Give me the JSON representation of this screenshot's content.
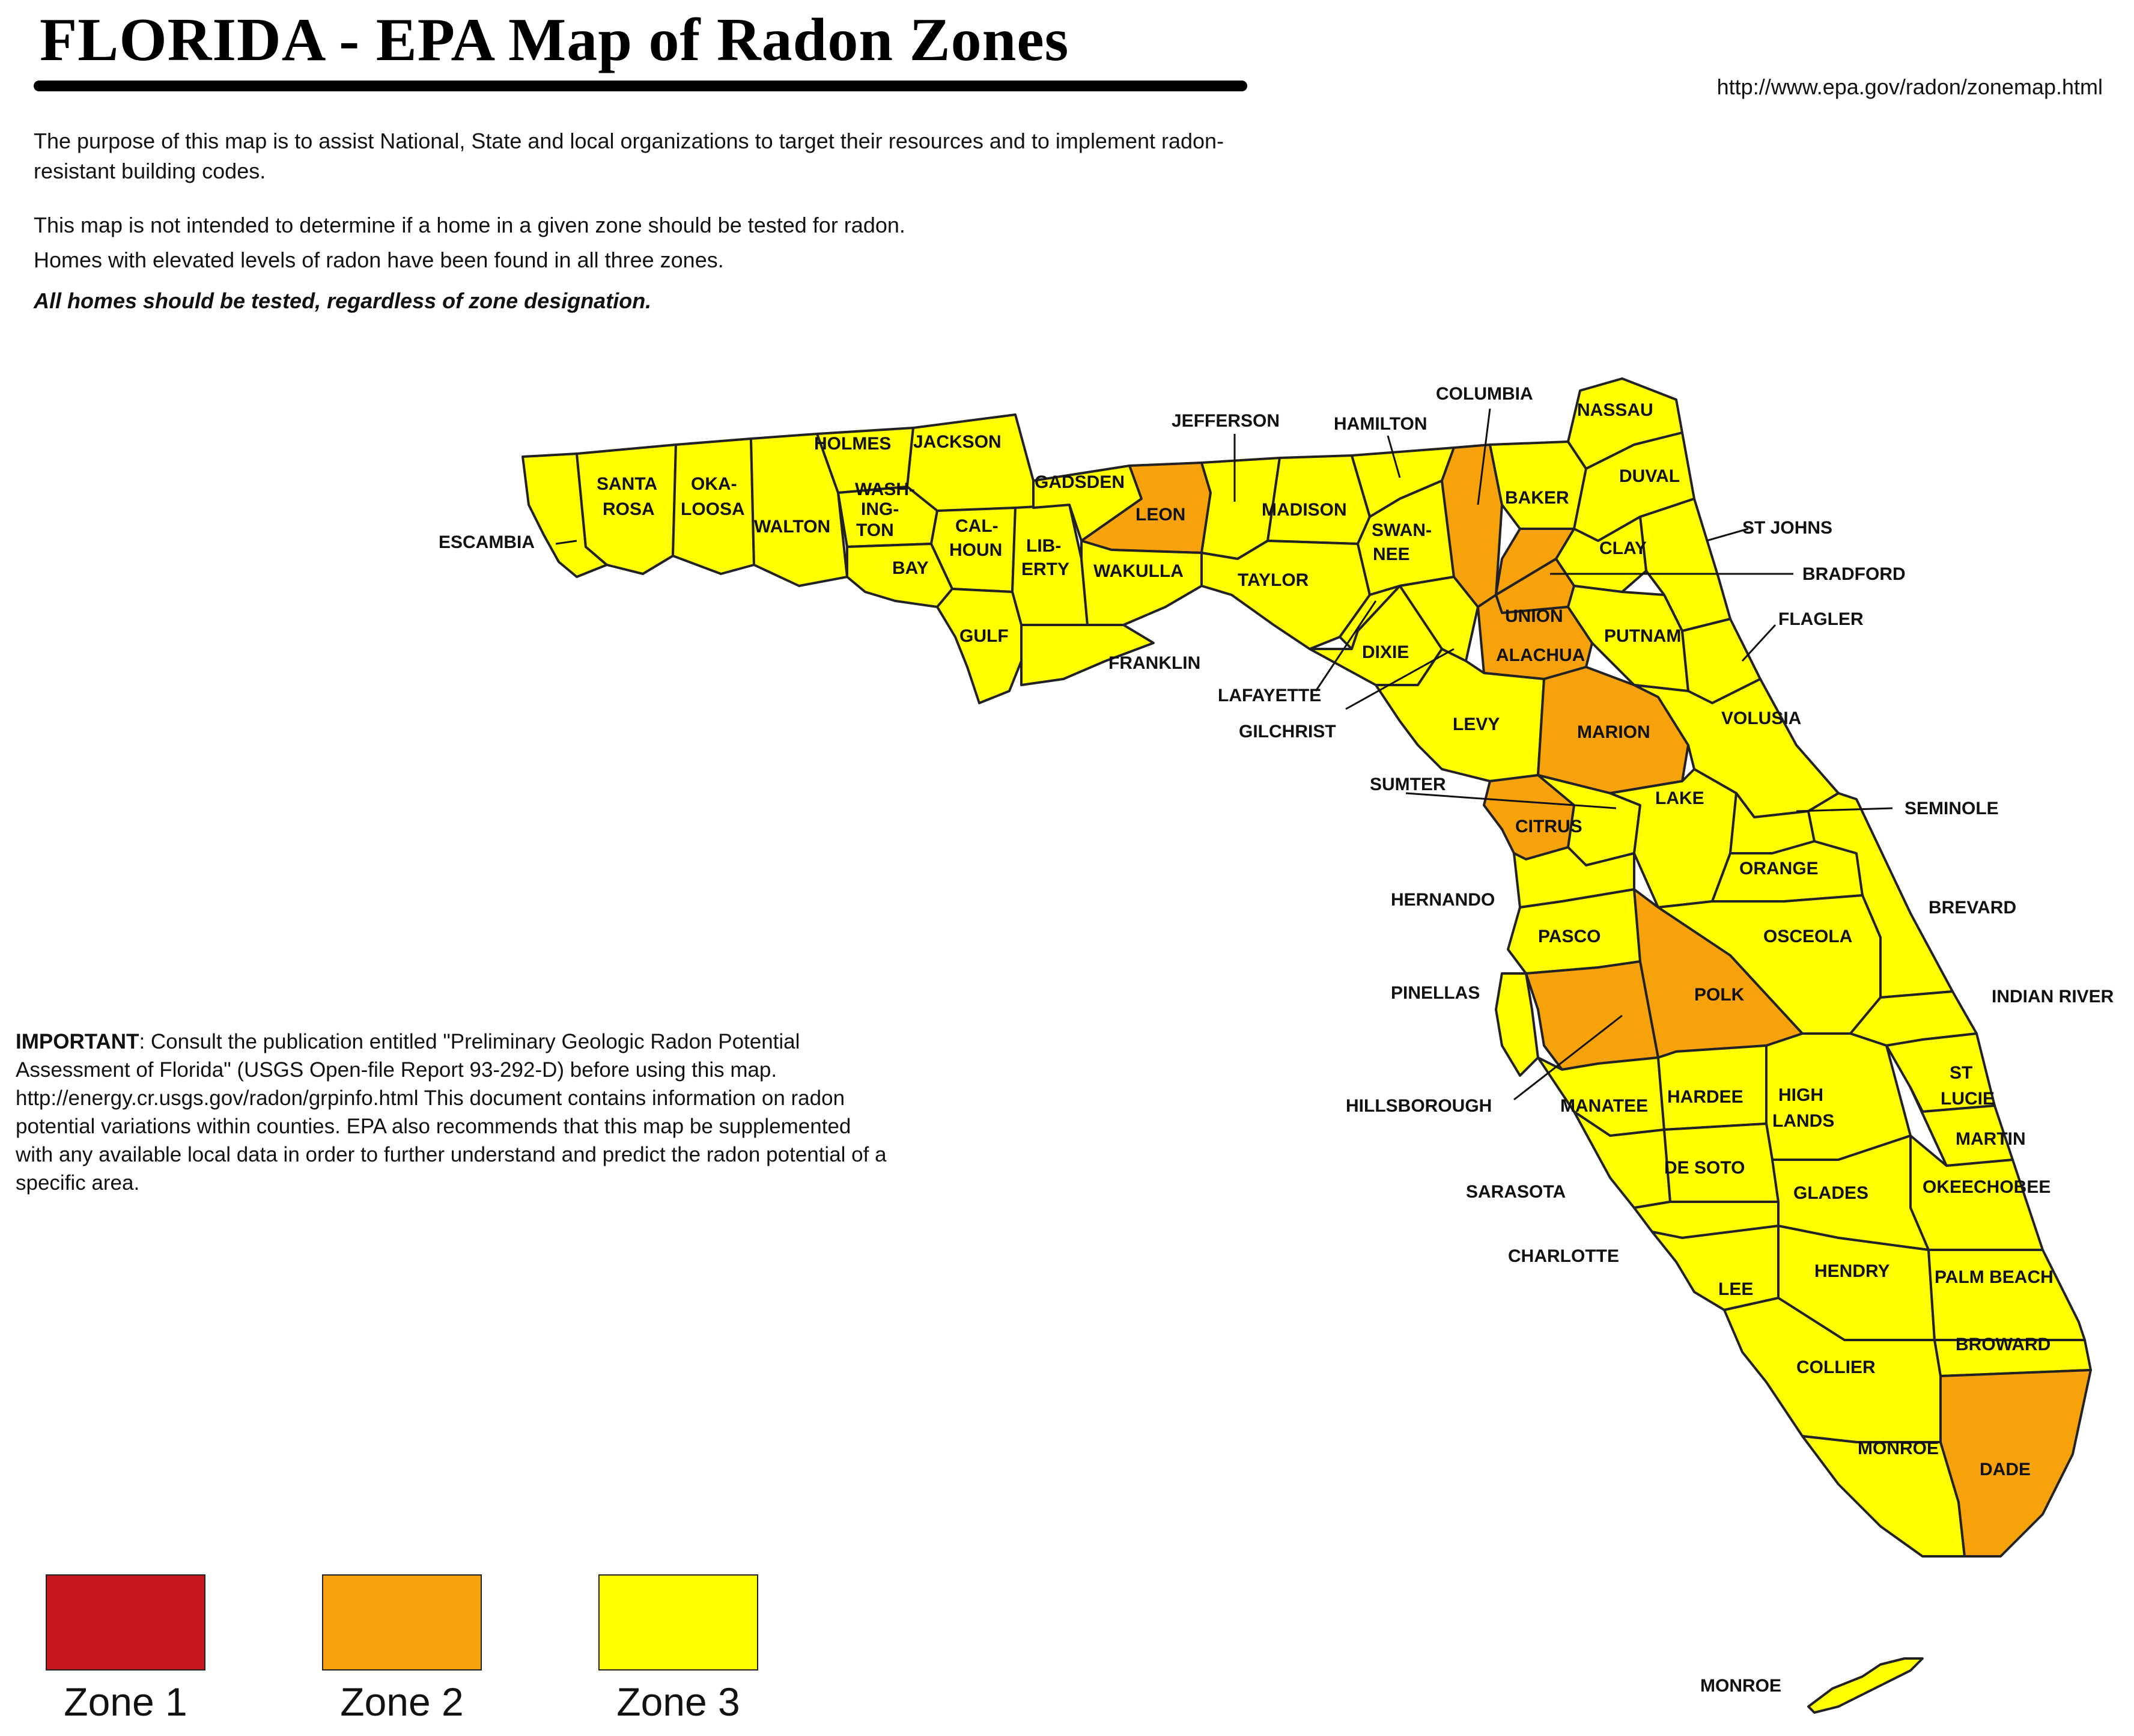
{
  "header": {
    "title": "FLORIDA - EPA Map of Radon Zones",
    "url": "http://www.epa.gov/radon/zonemap.html"
  },
  "intro": {
    "p1": "The purpose of this map is to assist National, State and local organizations to target their resources and to implement radon-resistant building codes.",
    "p2": "This map is not intended to determine if a home in a given zone should be tested for radon.",
    "p3": "Homes with elevated levels of radon have been found in all three zones.",
    "p4": "All homes should be tested, regardless of zone designation."
  },
  "important": {
    "label": "IMPORTANT",
    "text": ": Consult the publication entitled \"Preliminary Geologic Radon Potential Assessment of Florida\" (USGS Open-file Report 93-292-D) before using this map. http://energy.cr.usgs.gov/radon/grpinfo.html  This document contains information on radon potential variations within counties. EPA also recommends that this map be supplemented with any available local data in order to further understand and predict the radon potential of a specific area."
  },
  "colors": {
    "zone1": "#c8161d",
    "zone2": "#f7a20a",
    "zone3": "#ffff00"
  },
  "legend": [
    {
      "label": "Zone 1",
      "color": "#c8161d"
    },
    {
      "label": "Zone 2",
      "color": "#f7a20a"
    },
    {
      "label": "Zone 3",
      "color": "#ffff00"
    }
  ],
  "counties": {
    "escambia": "ESCAMBIA",
    "santa_rosa_1": "SANTA",
    "santa_rosa_2": "ROSA",
    "okaloosa_1": "OKA-",
    "okaloosa_2": "LOOSA",
    "walton": "WALTON",
    "holmes": "HOLMES",
    "jackson": "JACKSON",
    "washington_1": "WASH-",
    "washington_2": "ING-",
    "washington_3": "TON",
    "bay": "BAY",
    "calhoun_1": "CAL-",
    "calhoun_2": "HOUN",
    "liberty_1": "LIB-",
    "liberty_2": "ERTY",
    "gulf": "GULF",
    "gadsden": "GADSDEN",
    "leon": "LEON",
    "wakulla": "WAKULLA",
    "franklin": "FRANKLIN",
    "jefferson": "JEFFERSON",
    "madison": "MADISON",
    "taylor": "TAYLOR",
    "hamilton": "HAMILTON",
    "swannee_1": "SWAN-",
    "swannee_2": "NEE",
    "lafayette": "LAFAYETTE",
    "dixie": "DIXIE",
    "gilchrist": "GILCHRIST",
    "columbia": "COLUMBIA",
    "baker": "BAKER",
    "nassau": "NASSAU",
    "duval": "DUVAL",
    "st_johns": "ST JOHNS",
    "clay": "CLAY",
    "bradford": "BRADFORD",
    "union": "UNION",
    "alachua": "ALACHUA",
    "putnam": "PUTNAM",
    "flagler": "FLAGLER",
    "levy": "LEVY",
    "marion": "MARION",
    "volusia": "VOLUSIA",
    "sumter": "SUMTER",
    "citrus": "CITRUS",
    "lake": "LAKE",
    "seminole": "SEMINOLE",
    "orange": "ORANGE",
    "hernando": "HERNANDO",
    "brevard": "BREVARD",
    "pasco": "PASCO",
    "osceola": "OSCEOLA",
    "pinellas": "PINELLAS",
    "polk": "POLK",
    "indian_river": "INDIAN RIVER",
    "hillsborough": "HILLSBOROUGH",
    "manatee": "MANATEE",
    "hardee": "HARDEE",
    "highlands_1": "HIGH",
    "highlands_2": "LANDS",
    "st_lucie_1": "ST",
    "st_lucie_2": "LUCIE",
    "martin": "MARTIN",
    "de_soto": "DE SOTO",
    "sarasota": "SARASOTA",
    "glades": "GLADES",
    "okeechobee": "OKEECHOBEE",
    "charlotte": "CHARLOTTE",
    "lee": "LEE",
    "hendry": "HENDRY",
    "palm_beach": "PALM BEACH",
    "broward": "BROWARD",
    "collier": "COLLIER",
    "monroe": "MONROE",
    "dade": "DADE",
    "monroe_keys": "MONROE"
  }
}
